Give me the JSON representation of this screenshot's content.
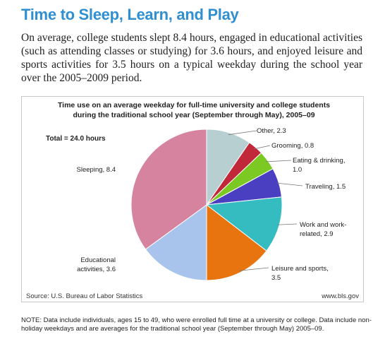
{
  "heading": "Time to Sleep, Learn, and Play",
  "intro": "On average, college students slept 8.4 hours, engaged in educational activities (such as attending classes or studying) for 3.6 hours, and enjoyed leisure and sports activities for 3.5 hours on a typical weekday during the school year over the 2005–2009 period.",
  "chart_data": {
    "type": "pie",
    "title_lines": [
      "Time use on an average weekday for full-time university and college students",
      "during the traditional school year (September through May), 2005–09"
    ],
    "total_label": "Total = 24.0 hours",
    "unit": "hours",
    "slices": [
      {
        "label_lines": [
          "Other, 2.3"
        ],
        "value": 2.3,
        "color": "#b7cfd1"
      },
      {
        "label_lines": [
          "Grooming, 0.8"
        ],
        "value": 0.8,
        "color": "#c1283a"
      },
      {
        "label_lines": [
          "Eating & drinking,",
          "1.0"
        ],
        "value": 1.0,
        "color": "#7cc924"
      },
      {
        "label_lines": [
          "Traveling, 1.5"
        ],
        "value": 1.5,
        "color": "#4a3fc0"
      },
      {
        "label_lines": [
          "Work and work-",
          "related, 2.9"
        ],
        "value": 2.9,
        "color": "#35bcc0"
      },
      {
        "label_lines": [
          "Leisure and sports,",
          "3.5"
        ],
        "value": 3.5,
        "color": "#e8740f"
      },
      {
        "label_lines": [
          "Educational",
          "activities, 3.6"
        ],
        "value": 3.6,
        "color": "#a9c4ec"
      },
      {
        "label_lines": [
          "Sleeping, 8.4"
        ],
        "value": 8.4,
        "color": "#d5839f"
      }
    ],
    "source": "Source: U.S. Bureau of Labor Statistics",
    "site": "www.bls.gov"
  },
  "note": "NOTE: Data include individuals, ages 15 to 49, who were enrolled full time at a university or college. Data include non-holiday weekdays and are averages for the traditional school year (September through May) 2005–09."
}
